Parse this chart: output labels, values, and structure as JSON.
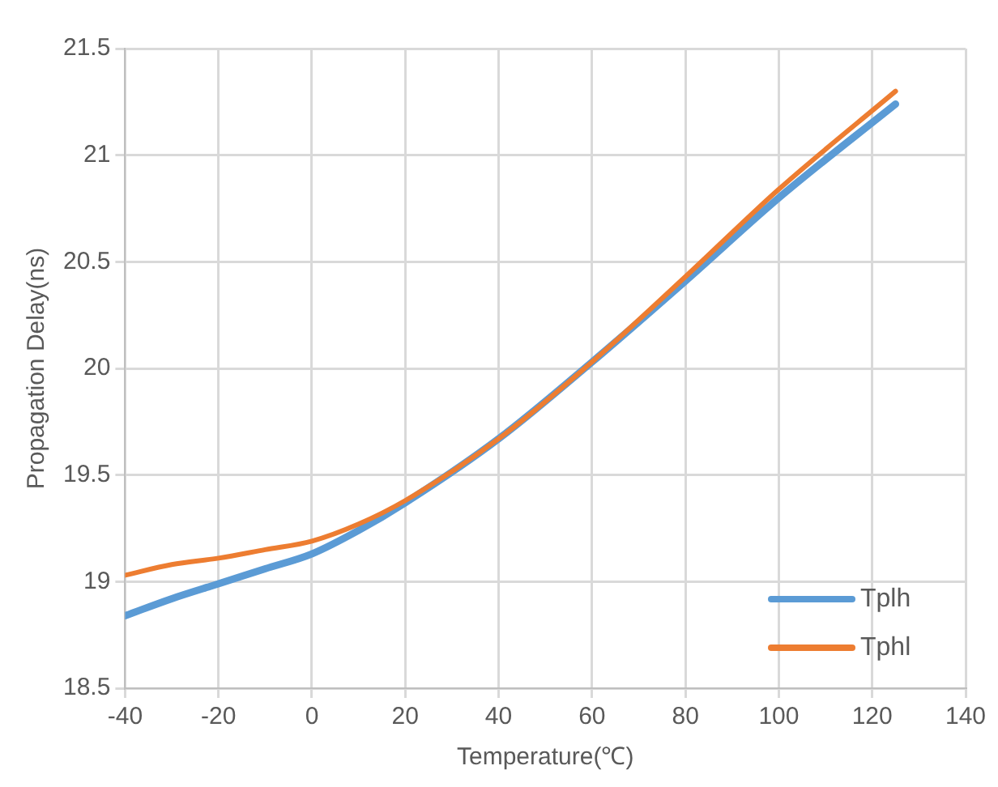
{
  "chart_data": {
    "type": "line",
    "xlabel": "Temperature(℃)",
    "ylabel": "Propagation Delay(ns)",
    "x": [
      -40,
      -30,
      -20,
      -10,
      0,
      10,
      20,
      40,
      60,
      80,
      100,
      125
    ],
    "series": [
      {
        "name": "Tplh",
        "color": "#5b9bd5",
        "values": [
          18.84,
          18.92,
          18.99,
          19.06,
          19.13,
          19.24,
          19.37,
          19.67,
          20.03,
          20.41,
          20.8,
          21.24
        ]
      },
      {
        "name": "Tphl",
        "color": "#ed7d31",
        "values": [
          19.03,
          19.08,
          19.11,
          19.15,
          19.19,
          19.27,
          19.38,
          19.67,
          20.03,
          20.43,
          20.84,
          21.3
        ]
      }
    ],
    "xlim": [
      -40,
      140
    ],
    "xticks": [
      -40,
      -20,
      0,
      20,
      40,
      60,
      80,
      100,
      120,
      140
    ],
    "ylim": [
      18.5,
      21.5
    ],
    "yticks": [
      18.5,
      19,
      19.5,
      20,
      20.5,
      21,
      21.5
    ],
    "grid": true,
    "legend": "bottom right",
    "marker": "none",
    "line_style": "solid"
  }
}
